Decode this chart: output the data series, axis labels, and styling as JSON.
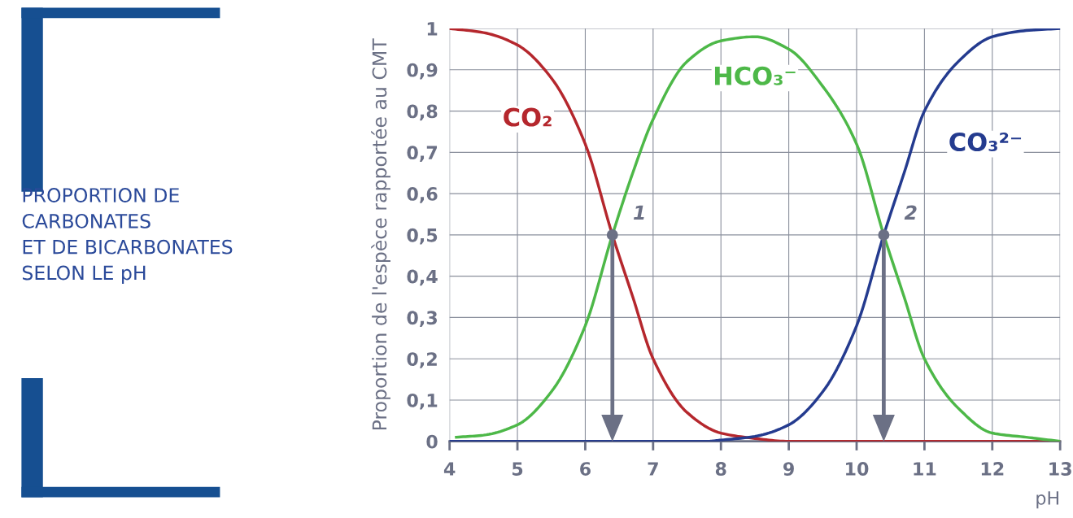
{
  "chart_data": {
    "type": "line",
    "title": "PROPORTION DE\nCARBONATES\nET DE BICARBONATES\nSELON LE pH",
    "xlabel": "pH",
    "ylabel": "Proportion de l'espèce rapportée au CMT",
    "xlim": [
      4,
      13
    ],
    "xticks": [
      4,
      5,
      6,
      7,
      8,
      9,
      10,
      11,
      12,
      13
    ],
    "ylim": [
      0,
      1
    ],
    "yticks": [
      0,
      {
        "value": 0.1,
        "label": "0,1"
      },
      {
        "value": 0.2,
        "label": "0,2"
      },
      {
        "value": 0.3,
        "label": "0,3"
      },
      {
        "value": 0.4,
        "label": "0,4"
      },
      {
        "value": 0.5,
        "label": "0,5"
      },
      {
        "value": 0.6,
        "label": "0,6"
      },
      {
        "value": 0.7,
        "label": "0,7"
      },
      {
        "value": 0.8,
        "label": "0,8"
      },
      {
        "value": 0.9,
        "label": "0,9"
      },
      1
    ],
    "grid": true,
    "legend": false,
    "marker": "none",
    "line_style": "solid",
    "series": [
      {
        "name": "CO₂",
        "color": "#b5272d",
        "x": [
          4.0,
          4.5,
          5.0,
          5.5,
          6.0,
          6.4,
          6.7,
          7.0,
          7.5,
          8.0,
          8.5,
          9.0,
          10.0,
          11.0,
          12.0,
          13.0
        ],
        "values": [
          1.0,
          0.99,
          0.96,
          0.88,
          0.72,
          0.5,
          0.35,
          0.2,
          0.07,
          0.02,
          0.007,
          0.0,
          0.0,
          0.0,
          0.0,
          0.0
        ]
      },
      {
        "name": "HCO₃⁻",
        "color": "#4db848",
        "x": [
          4.1,
          4.5,
          5.0,
          5.5,
          6.0,
          6.4,
          6.7,
          7.0,
          7.5,
          8.0,
          8.5,
          9.0,
          9.5,
          10.0,
          10.4,
          10.7,
          11.0,
          11.5,
          12.0,
          12.5,
          13.0
        ],
        "values": [
          0.01,
          0.015,
          0.04,
          0.12,
          0.28,
          0.5,
          0.65,
          0.78,
          0.92,
          0.97,
          0.98,
          0.95,
          0.86,
          0.72,
          0.5,
          0.35,
          0.2,
          0.08,
          0.02,
          0.01,
          0.0
        ]
      },
      {
        "name": "CO₃²⁻",
        "color": "#243b8f",
        "x": [
          4.0,
          5.0,
          6.0,
          7.0,
          7.8,
          8.0,
          8.5,
          9.0,
          9.5,
          10.0,
          10.4,
          10.7,
          11.0,
          11.5,
          12.0,
          12.5,
          13.0
        ],
        "values": [
          0.0,
          0.0,
          0.0,
          0.0,
          0.0,
          0.003,
          0.012,
          0.04,
          0.12,
          0.28,
          0.5,
          0.65,
          0.8,
          0.92,
          0.98,
          0.995,
          1.0
        ]
      }
    ],
    "annotations": [
      {
        "text": "1",
        "x": 6.4,
        "y": 0.5
      },
      {
        "text": "2",
        "x": 10.4,
        "y": 0.5
      }
    ]
  }
}
